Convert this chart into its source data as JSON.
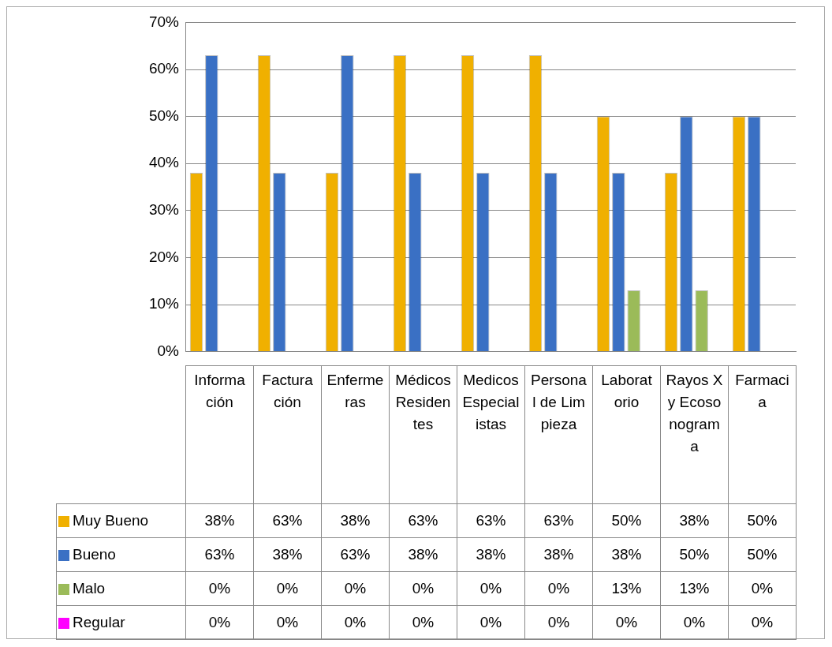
{
  "chart_data": {
    "type": "bar",
    "categories": [
      "Información",
      "Facturación",
      "Enfermeras",
      "Médicos Residentes",
      "Medicos Especialistas",
      "Personal de Limpieza",
      "Laboratorio",
      "Rayos X y Ecosonograma",
      "Farmacia"
    ],
    "series": [
      {
        "name": "Muy Bueno",
        "color": "#f0b000",
        "values": [
          38,
          63,
          38,
          63,
          63,
          63,
          50,
          38,
          50
        ],
        "value_labels": [
          "38%",
          "63%",
          "38%",
          "63%",
          "63%",
          "63%",
          "50%",
          "38%",
          "50%"
        ]
      },
      {
        "name": "Bueno",
        "color": "#3a70c4",
        "values": [
          63,
          38,
          63,
          38,
          38,
          38,
          38,
          50,
          50
        ],
        "value_labels": [
          "63%",
          "38%",
          "63%",
          "38%",
          "38%",
          "38%",
          "38%",
          "50%",
          "50%"
        ]
      },
      {
        "name": "Malo",
        "color": "#9bbb59",
        "values": [
          0,
          0,
          0,
          0,
          0,
          0,
          13,
          13,
          0
        ],
        "value_labels": [
          "0%",
          "0%",
          "0%",
          "0%",
          "0%",
          "0%",
          "13%",
          "13%",
          "0%"
        ]
      },
      {
        "name": "Regular",
        "color": "#ff00ff",
        "values": [
          0,
          0,
          0,
          0,
          0,
          0,
          0,
          0,
          0
        ],
        "value_labels": [
          "0%",
          "0%",
          "0%",
          "0%",
          "0%",
          "0%",
          "0%",
          "0%",
          "0%"
        ]
      }
    ],
    "ylim": [
      0,
      70
    ],
    "yticks": [
      {
        "value": 0,
        "label": "0%"
      },
      {
        "value": 10,
        "label": "10%"
      },
      {
        "value": 20,
        "label": "20%"
      },
      {
        "value": 30,
        "label": "30%"
      },
      {
        "value": 40,
        "label": "40%"
      },
      {
        "value": 50,
        "label": "50%"
      },
      {
        "value": 60,
        "label": "60%"
      },
      {
        "value": 70,
        "label": "70%"
      }
    ],
    "grid": "y",
    "legend": "bottom"
  }
}
